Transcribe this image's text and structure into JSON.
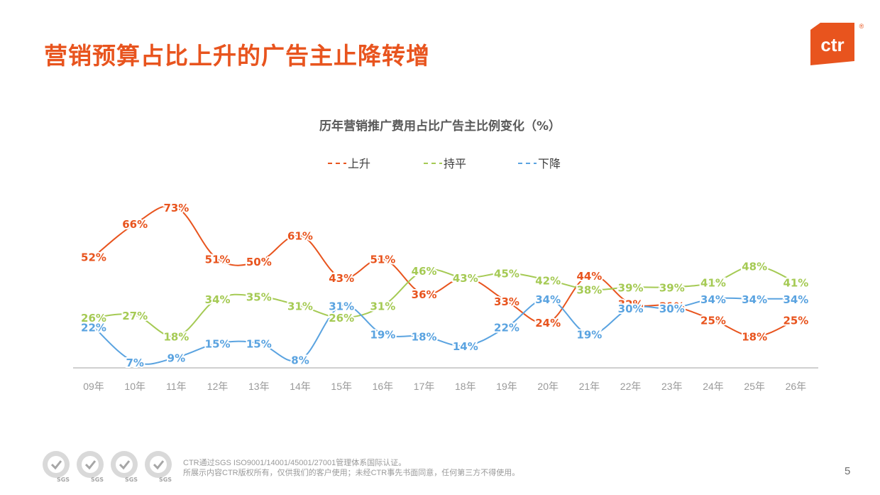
{
  "header": {
    "title": "营销预算占比上升的广告主止降转增",
    "logo_text": "ctr",
    "logo_mark": "®"
  },
  "chart_data": {
    "type": "line",
    "title": "历年营销推广费用占比广告主比例变化（%）",
    "categories": [
      "09年",
      "10年",
      "11年",
      "12年",
      "13年",
      "14年",
      "15年",
      "16年",
      "17年",
      "18年",
      "19年",
      "20年",
      "21年",
      "22年",
      "23年",
      "24年",
      "25年",
      "26年"
    ],
    "value_suffix": "%",
    "legend_position": "top",
    "grid": false,
    "series": [
      {
        "name": "上升",
        "color": "#e8541e",
        "values": [
          52,
          66,
          73,
          51,
          50,
          61,
          43,
          51,
          36,
          43,
          33,
          24,
          44,
          32,
          31,
          25,
          18,
          25
        ]
      },
      {
        "name": "持平",
        "color": "#a5ca54",
        "values": [
          26,
          27,
          18,
          34,
          35,
          31,
          26,
          31,
          46,
          43,
          45,
          42,
          38,
          39,
          39,
          41,
          48,
          41
        ]
      },
      {
        "name": "下降",
        "color": "#5aa3e0",
        "values": [
          22,
          7,
          9,
          15,
          15,
          8,
          31,
          19,
          18,
          14,
          22,
          34,
          19,
          30,
          30,
          34,
          34,
          34
        ]
      }
    ]
  },
  "footer": {
    "badge_label": "SGS",
    "line1": "CTR通过SGS ISO9001/14001/45001/27001管理体系国际认证。",
    "line2": "所展示内容CTR版权所有，仅供我们的客户使用；未经CTR事先书面同意，任何第三方不得使用。",
    "page_number": "5"
  }
}
